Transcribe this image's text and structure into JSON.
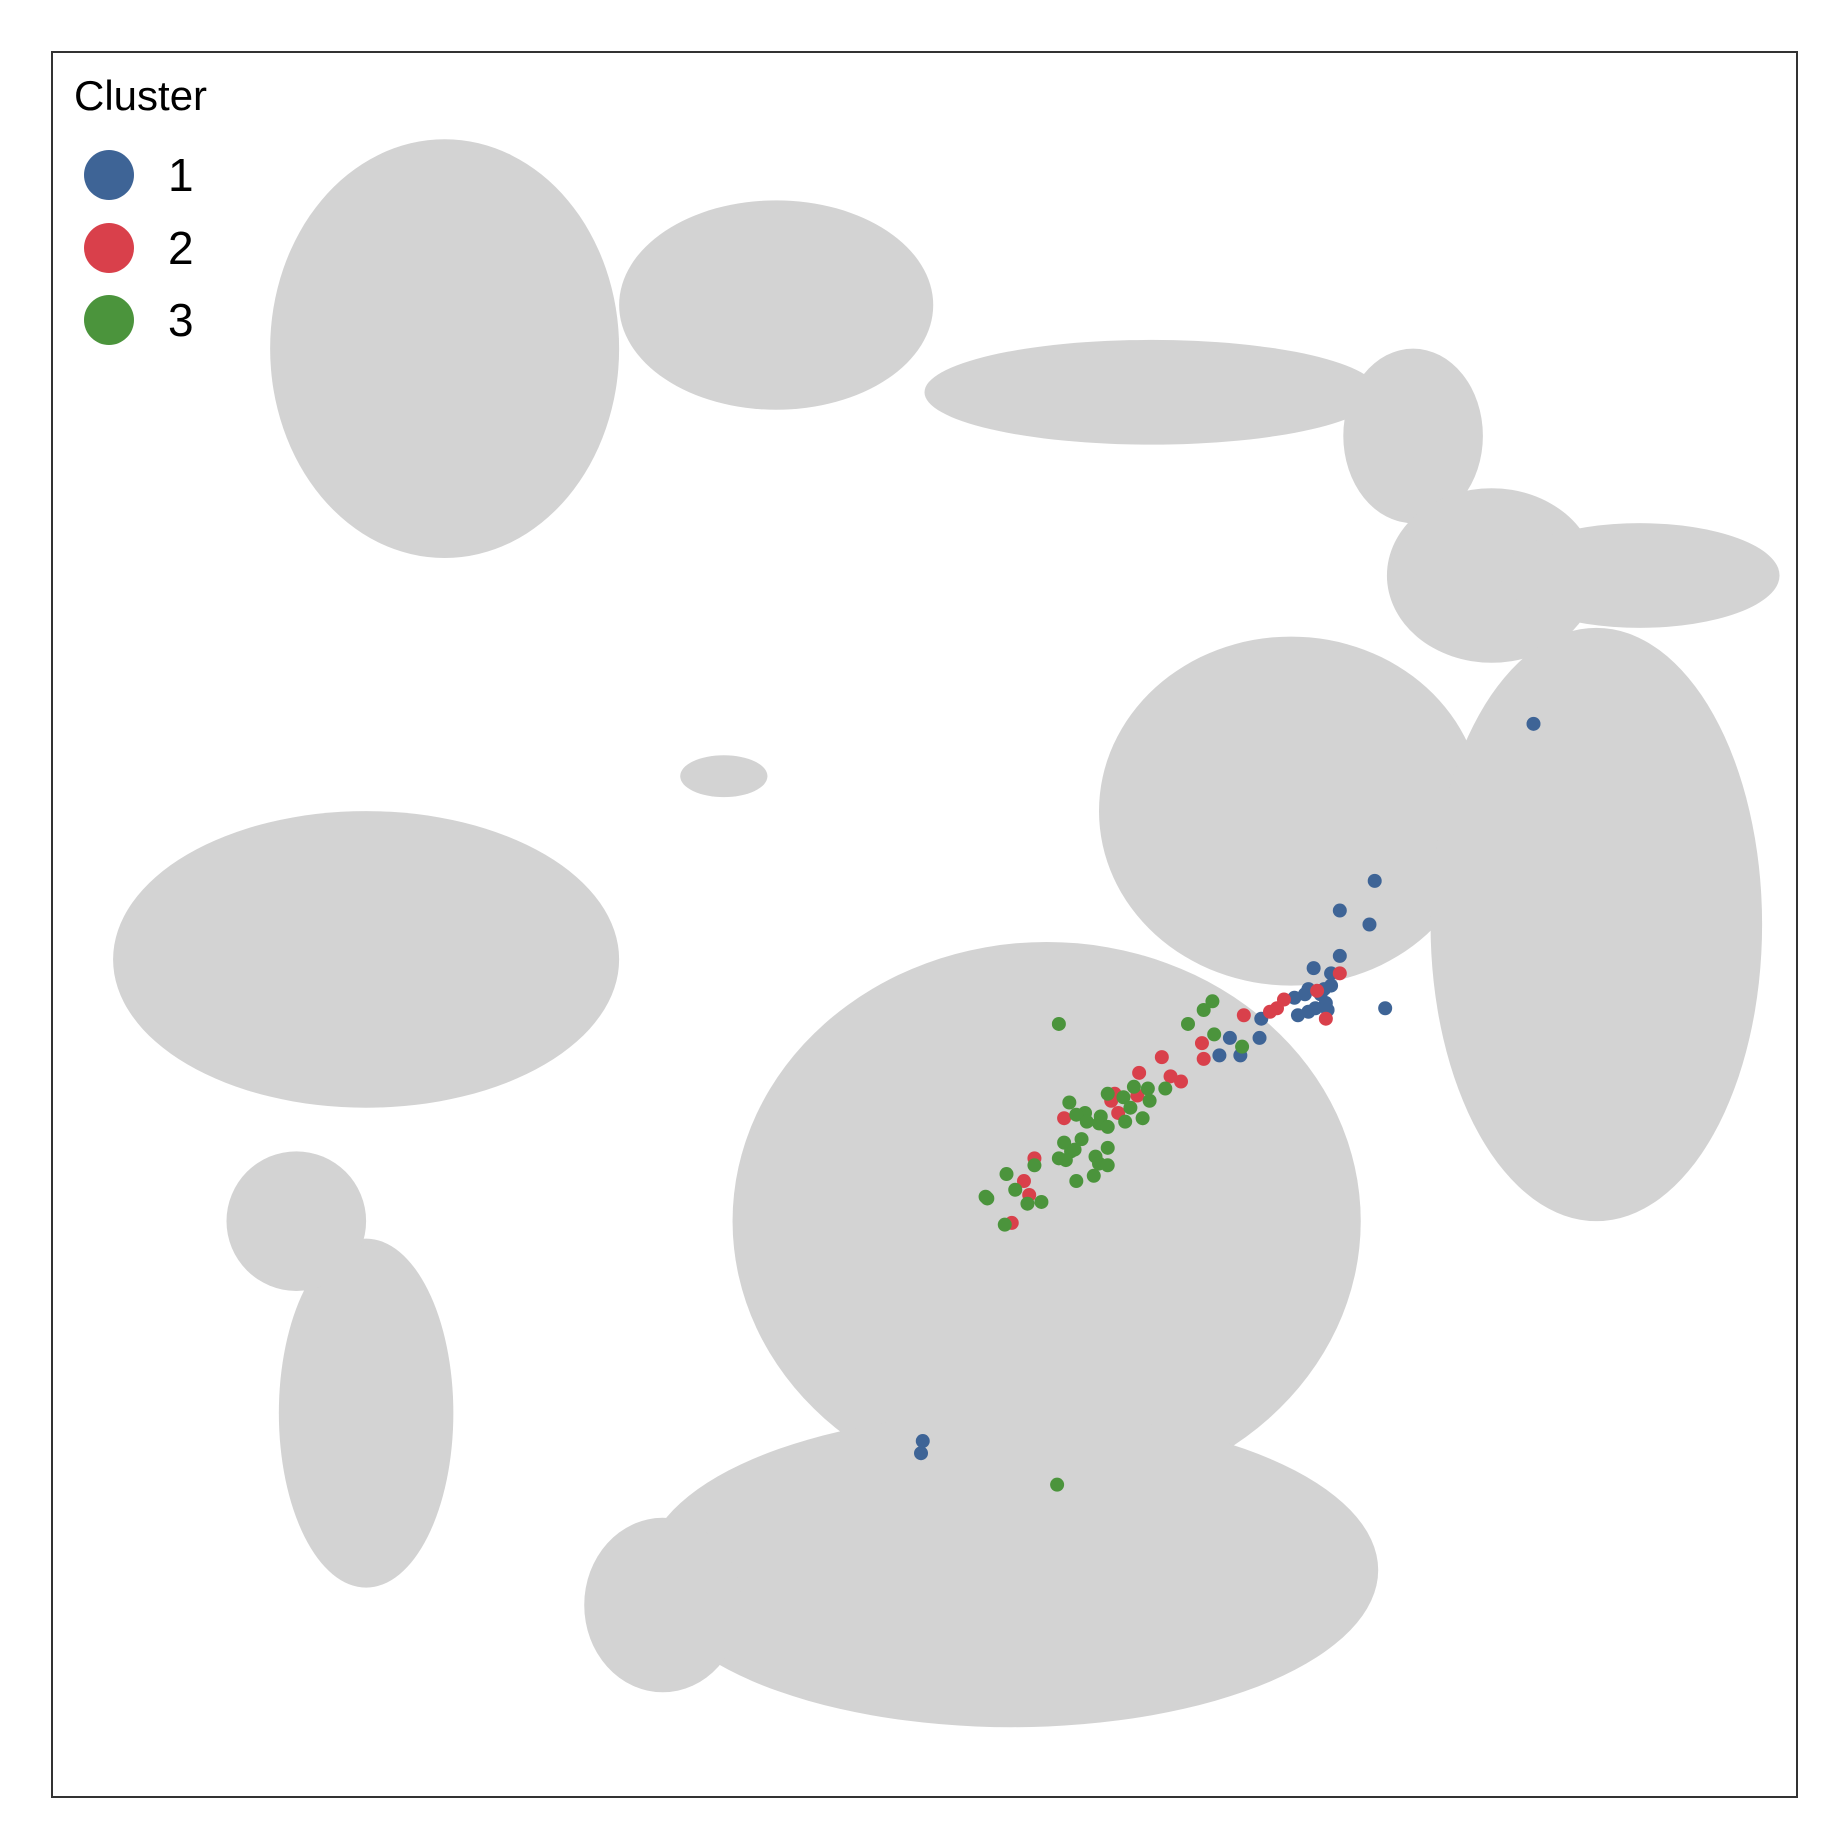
{
  "chart_data": {
    "type": "scatter",
    "title": "",
    "xlabel": "",
    "ylabel": "",
    "xlim": [
      0,
      100
    ],
    "ylim": [
      0,
      100
    ],
    "grid": false,
    "axis_ticks": false,
    "background_color": "#d3d3d3",
    "legend": {
      "title": "Cluster",
      "position": "top-left",
      "entries": [
        {
          "label": "1",
          "color": "#3e6496"
        },
        {
          "label": "2",
          "color": "#d9404b"
        },
        {
          "label": "3",
          "color": "#4b943c"
        }
      ]
    },
    "background_regions": [
      {
        "kind": "ellipse",
        "cx": 22.5,
        "cy": 83.0,
        "rx": 10.0,
        "ry": 12.0
      },
      {
        "kind": "ellipse",
        "cx": 41.5,
        "cy": 85.5,
        "rx": 9.0,
        "ry": 6.0
      },
      {
        "kind": "ellipse",
        "cx": 63.0,
        "cy": 80.5,
        "rx": 13.0,
        "ry": 3.0
      },
      {
        "kind": "ellipse",
        "cx": 78.0,
        "cy": 78.0,
        "rx": 4.0,
        "ry": 5.0
      },
      {
        "kind": "ellipse",
        "cx": 82.5,
        "cy": 70.0,
        "rx": 6.0,
        "ry": 5.0
      },
      {
        "kind": "ellipse",
        "cx": 91.0,
        "cy": 70.0,
        "rx": 8.0,
        "ry": 3.0
      },
      {
        "kind": "ellipse",
        "cx": 38.5,
        "cy": 58.5,
        "rx": 2.5,
        "ry": 1.2
      },
      {
        "kind": "ellipse",
        "cx": 18.0,
        "cy": 48.0,
        "rx": 14.5,
        "ry": 8.5
      },
      {
        "kind": "ellipse",
        "cx": 71.0,
        "cy": 56.5,
        "rx": 11.0,
        "ry": 10.0
      },
      {
        "kind": "ellipse",
        "cx": 88.5,
        "cy": 50.0,
        "rx": 9.5,
        "ry": 17.0
      },
      {
        "kind": "ellipse",
        "cx": 57.0,
        "cy": 33.0,
        "rx": 18.0,
        "ry": 16.0
      },
      {
        "kind": "ellipse",
        "cx": 55.0,
        "cy": 13.0,
        "rx": 21.0,
        "ry": 9.0
      },
      {
        "kind": "ellipse",
        "cx": 35.0,
        "cy": 11.0,
        "rx": 4.5,
        "ry": 5.0
      },
      {
        "kind": "ellipse",
        "cx": 18.0,
        "cy": 22.0,
        "rx": 5.0,
        "ry": 10.0
      },
      {
        "kind": "ellipse",
        "cx": 14.0,
        "cy": 33.0,
        "rx": 4.0,
        "ry": 4.0
      }
    ],
    "series": [
      {
        "name": "1",
        "color": "#3e6496",
        "points": [
          [
            84.9,
            61.5
          ],
          [
            75.8,
            52.5
          ],
          [
            73.8,
            50.8
          ],
          [
            75.5,
            50.0
          ],
          [
            73.8,
            48.2
          ],
          [
            73.3,
            47.2
          ],
          [
            72.3,
            47.5
          ],
          [
            72.9,
            46.3
          ],
          [
            73.3,
            46.5
          ],
          [
            72.7,
            46.0
          ],
          [
            72.0,
            46.3
          ],
          [
            71.8,
            46.0
          ],
          [
            73.0,
            45.5
          ],
          [
            71.2,
            45.8
          ],
          [
            72.0,
            45.0
          ],
          [
            72.4,
            45.2
          ],
          [
            71.4,
            44.8
          ],
          [
            73.1,
            45.1
          ],
          [
            76.4,
            45.2
          ],
          [
            69.3,
            44.6
          ],
          [
            69.2,
            43.5
          ],
          [
            67.5,
            43.5
          ],
          [
            68.1,
            42.5
          ],
          [
            66.9,
            42.5
          ],
          [
            49.9,
            20.4
          ],
          [
            49.8,
            19.7
          ]
        ]
      },
      {
        "name": "2",
        "color": "#d9404b",
        "points": [
          [
            73.8,
            47.2
          ],
          [
            72.5,
            46.2
          ],
          [
            70.6,
            45.7
          ],
          [
            70.2,
            45.2
          ],
          [
            73.0,
            44.6
          ],
          [
            68.3,
            44.8
          ],
          [
            69.8,
            45.0
          ],
          [
            65.9,
            43.2
          ],
          [
            66.0,
            42.3
          ],
          [
            63.6,
            42.4
          ],
          [
            64.1,
            41.3
          ],
          [
            62.3,
            41.5
          ],
          [
            64.7,
            41.0
          ],
          [
            62.2,
            40.2
          ],
          [
            60.9,
            40.3
          ],
          [
            60.7,
            39.9
          ],
          [
            60.1,
            38.6
          ],
          [
            61.1,
            39.2
          ],
          [
            58.0,
            38.9
          ],
          [
            56.3,
            36.6
          ],
          [
            55.7,
            35.3
          ],
          [
            56.0,
            34.5
          ],
          [
            55.0,
            32.9
          ]
        ]
      },
      {
        "name": "3",
        "color": "#4b943c",
        "points": [
          [
            66.5,
            45.6
          ],
          [
            66.0,
            45.1
          ],
          [
            65.1,
            44.3
          ],
          [
            66.6,
            43.7
          ],
          [
            68.2,
            43.0
          ],
          [
            57.7,
            44.3
          ],
          [
            62.0,
            40.7
          ],
          [
            62.8,
            40.6
          ],
          [
            63.8,
            40.6
          ],
          [
            61.4,
            40.1
          ],
          [
            60.5,
            40.3
          ],
          [
            62.9,
            39.9
          ],
          [
            61.8,
            39.5
          ],
          [
            62.5,
            38.9
          ],
          [
            58.3,
            39.8
          ],
          [
            59.2,
            39.2
          ],
          [
            58.7,
            39.1
          ],
          [
            60.1,
            39.0
          ],
          [
            60.0,
            38.6
          ],
          [
            61.5,
            38.7
          ],
          [
            59.3,
            38.7
          ],
          [
            60.5,
            38.4
          ],
          [
            59.0,
            37.7
          ],
          [
            58.0,
            37.5
          ],
          [
            58.4,
            37.0
          ],
          [
            57.7,
            36.6
          ],
          [
            58.1,
            36.5
          ],
          [
            60.5,
            37.2
          ],
          [
            59.8,
            36.7
          ],
          [
            59.7,
            35.6
          ],
          [
            58.7,
            35.3
          ],
          [
            60.0,
            36.3
          ],
          [
            60.5,
            36.2
          ],
          [
            56.3,
            36.2
          ],
          [
            58.6,
            37.1
          ],
          [
            54.7,
            35.7
          ],
          [
            55.2,
            34.8
          ],
          [
            53.5,
            34.4
          ],
          [
            53.6,
            34.3
          ],
          [
            56.7,
            34.1
          ],
          [
            55.9,
            34.0
          ],
          [
            54.6,
            32.8
          ],
          [
            57.6,
            17.9
          ]
        ]
      }
    ]
  }
}
